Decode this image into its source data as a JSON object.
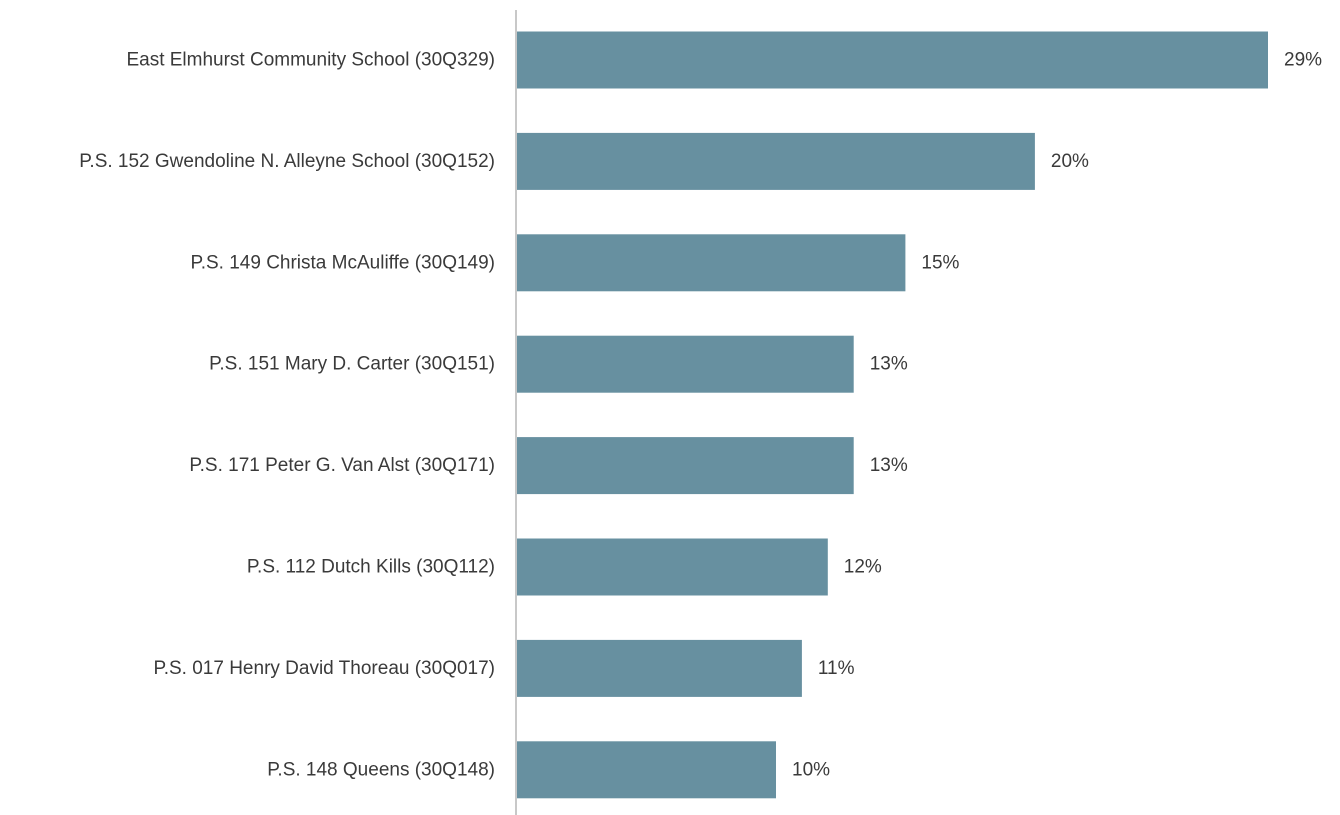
{
  "chart_data": {
    "type": "bar",
    "orientation": "horizontal",
    "categories": [
      "East Elmhurst Community School (30Q329)",
      "P.S. 152 Gwendoline N. Alleyne School (30Q152)",
      "P.S. 149 Christa McAuliffe (30Q149)",
      "P.S. 151 Mary D. Carter (30Q151)",
      "P.S. 171 Peter G. Van Alst (30Q171)",
      "P.S. 112 Dutch Kills (30Q112)",
      "P.S. 017 Henry David Thoreau (30Q017)",
      "P.S. 148 Queens (30Q148)"
    ],
    "values": [
      29,
      20,
      15,
      13,
      13,
      12,
      11,
      10
    ],
    "value_labels": [
      "29%",
      "20%",
      "15%",
      "13%",
      "13%",
      "12%",
      "11%",
      "10%"
    ],
    "unit": "%",
    "xlim": [
      0,
      29
    ],
    "grid": false,
    "legend": "none",
    "title": "",
    "xlabel": "",
    "ylabel": "",
    "colors": {
      "bar": "#6790a0",
      "axis": "#c8c8c8",
      "text": "#3a3a3a"
    }
  }
}
